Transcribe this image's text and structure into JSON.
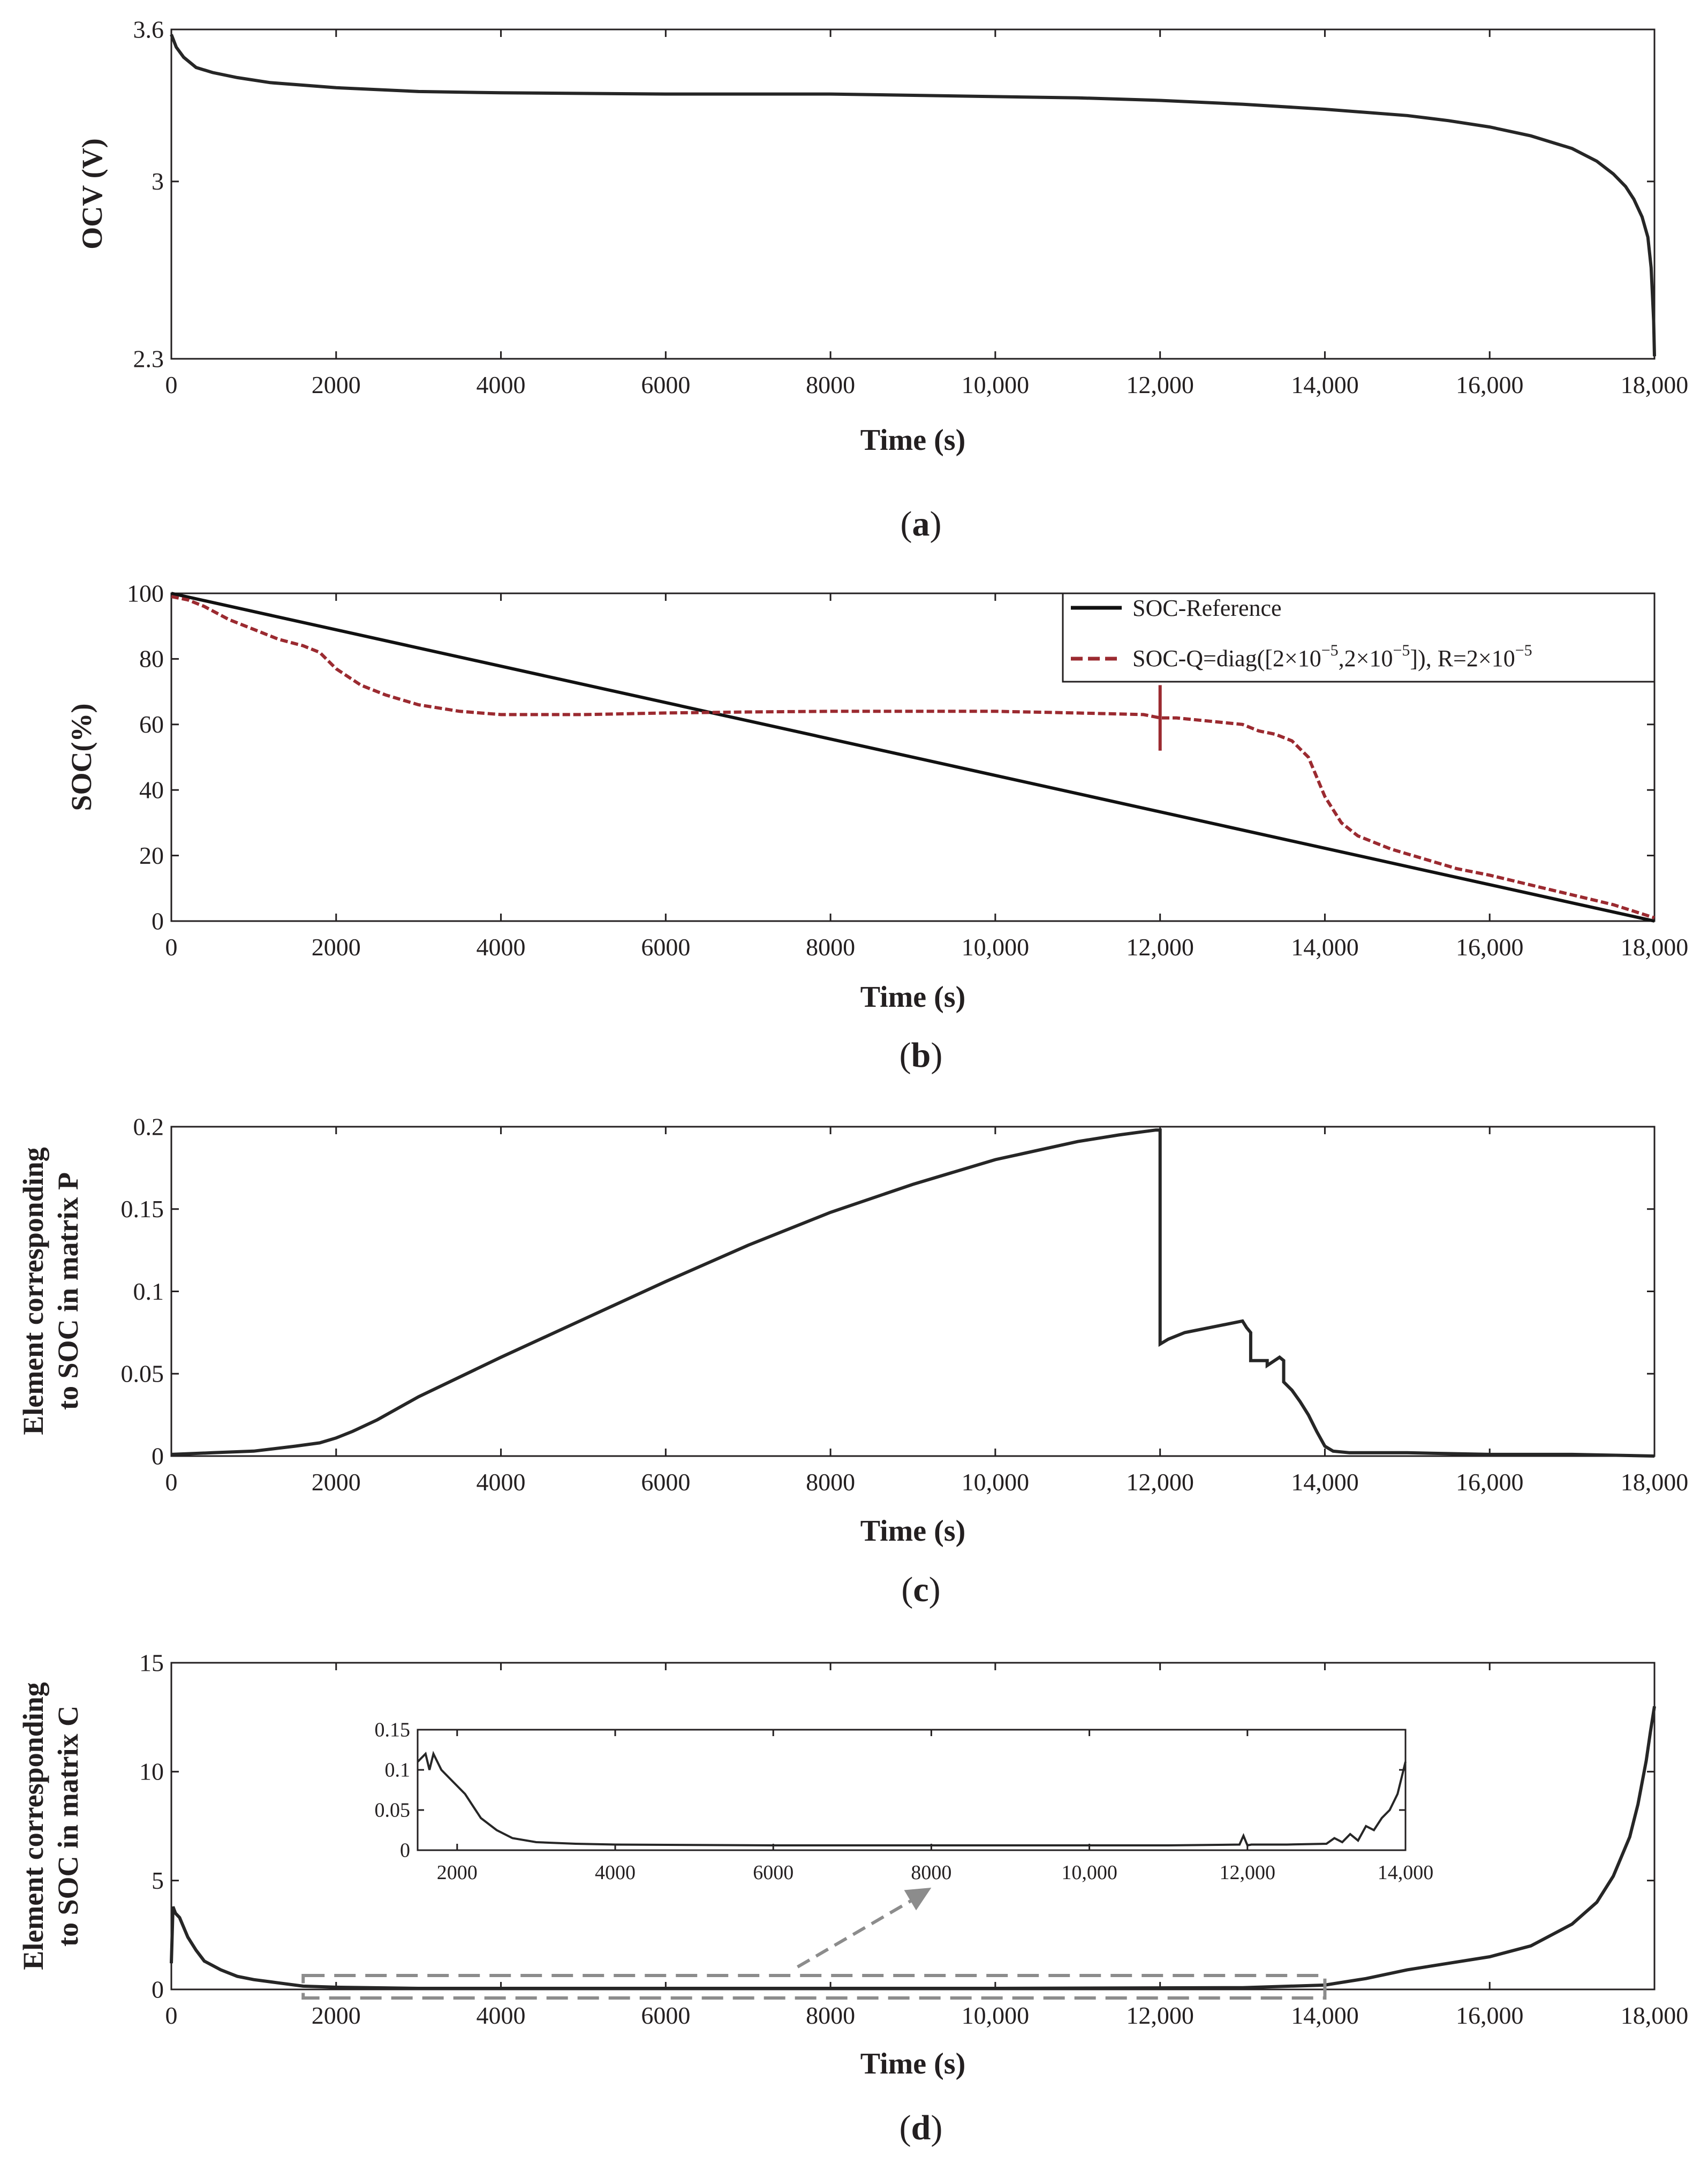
{
  "figure": {
    "panel_labels": [
      "a",
      "b",
      "c",
      "d"
    ]
  },
  "colors": {
    "axis": "#231f20",
    "curve": "#262626",
    "soc_estimate": "#9b2a30",
    "zoom": "#8c8c8c"
  },
  "chart_data": [
    {
      "id": "a",
      "type": "line",
      "title": "",
      "xlabel": "Time  (s)",
      "ylabel": "OCV (V)",
      "xlim": [
        0,
        18000
      ],
      "ylim": [
        2.3,
        3.6
      ],
      "xticks": [
        0,
        2000,
        4000,
        6000,
        8000,
        10000,
        12000,
        14000,
        16000,
        18000
      ],
      "xtick_labels": [
        "0",
        "2000",
        "4000",
        "6000",
        "8000",
        "10,000",
        "12,000",
        "14,000",
        "16,000",
        "18,000"
      ],
      "yticks": [
        2.3,
        3,
        3.6
      ],
      "ytick_labels": [
        "2.3",
        "3",
        "3.6"
      ],
      "series": [
        {
          "name": "OCV",
          "x": [
            0,
            60,
            150,
            300,
            500,
            800,
            1200,
            2000,
            3000,
            4000,
            6000,
            8000,
            10000,
            11000,
            12000,
            13000,
            14000,
            15000,
            15500,
            16000,
            16500,
            17000,
            17300,
            17500,
            17650,
            17750,
            17850,
            17920,
            17960,
            17990,
            18000
          ],
          "y": [
            3.58,
            3.53,
            3.49,
            3.45,
            3.43,
            3.41,
            3.39,
            3.37,
            3.355,
            3.35,
            3.345,
            3.345,
            3.335,
            3.33,
            3.32,
            3.305,
            3.285,
            3.26,
            3.24,
            3.215,
            3.18,
            3.13,
            3.08,
            3.03,
            2.98,
            2.93,
            2.86,
            2.78,
            2.66,
            2.45,
            2.31
          ]
        }
      ]
    },
    {
      "id": "b",
      "type": "line",
      "title": "",
      "xlabel": "Time  (s)",
      "ylabel": "SOC(%)",
      "xlim": [
        0,
        18000
      ],
      "ylim": [
        0,
        100
      ],
      "xticks": [
        0,
        2000,
        4000,
        6000,
        8000,
        10000,
        12000,
        14000,
        16000,
        18000
      ],
      "xtick_labels": [
        "0",
        "2000",
        "4000",
        "6000",
        "8000",
        "10,000",
        "12,000",
        "14,000",
        "16,000",
        "18,000"
      ],
      "yticks": [
        0,
        20,
        40,
        60,
        80,
        100
      ],
      "ytick_labels": [
        "0",
        "20",
        "40",
        "60",
        "80",
        "100"
      ],
      "legend": {
        "position": "top-right",
        "reference_label": "SOC-Reference",
        "estimate_label_prefix": "SOC-Q=diag([2",
        "estimate_label_times": "×",
        "estimate_label_base": "10",
        "estimate_label_exp": "−5",
        "estimate_label_sep": ",2",
        "estimate_label_mid": "]), R=2",
        "estimate_label_end": ""
      },
      "series": [
        {
          "name": "SOC-Reference",
          "style": "solid",
          "x": [
            0,
            18000
          ],
          "y": [
            100,
            0
          ]
        },
        {
          "name": "SOC-Q=diag([2×10−5,2×10−5]), R=2×10−5",
          "style": "dashed",
          "x": [
            0,
            200,
            400,
            700,
            1000,
            1300,
            1600,
            1800,
            2000,
            2300,
            2600,
            3000,
            3500,
            4000,
            4500,
            5000,
            6000,
            7000,
            8000,
            9000,
            10000,
            11000,
            11800,
            12000,
            12200,
            12600,
            13000,
            13200,
            13400,
            13600,
            13800,
            14000,
            14200,
            14400,
            14800,
            15200,
            15600,
            16000,
            16500,
            17000,
            17500,
            18000
          ],
          "y": [
            99,
            98,
            96,
            92,
            89,
            86,
            84,
            82,
            77,
            72,
            69,
            66,
            64,
            63,
            63,
            63,
            63.5,
            63.8,
            64,
            64,
            64,
            63.5,
            63,
            62,
            62,
            61,
            60,
            58,
            57,
            55,
            50,
            38,
            30,
            26,
            22,
            19,
            16,
            14,
            11,
            8,
            5,
            1
          ]
        },
        {
          "name": "spike",
          "style": "dashed",
          "x": [
            12000,
            12000
          ],
          "y": [
            72,
            52
          ]
        }
      ]
    },
    {
      "id": "c",
      "type": "line",
      "title": "",
      "xlabel": "Time (s)",
      "ylabel_line1": "Element corresponding",
      "ylabel_line2": "to SOC in matrix P",
      "xlim": [
        0,
        18000
      ],
      "ylim": [
        0,
        0.2
      ],
      "xticks": [
        0,
        2000,
        4000,
        6000,
        8000,
        10000,
        12000,
        14000,
        16000,
        18000
      ],
      "xtick_labels": [
        "0",
        "2000",
        "4000",
        "6000",
        "8000",
        "10,000",
        "12,000",
        "14,000",
        "16,000",
        "18,000"
      ],
      "yticks": [
        0,
        0.05,
        0.1,
        0.15,
        0.2
      ],
      "ytick_labels": [
        "0",
        "0.05",
        "0.1",
        "0.15",
        "0.2"
      ],
      "series": [
        {
          "name": "P",
          "x": [
            0,
            500,
            1000,
            1500,
            1800,
            2000,
            2200,
            2500,
            3000,
            4000,
            5000,
            6000,
            7000,
            8000,
            9000,
            10000,
            11000,
            11500,
            11800,
            11950,
            12000,
            12000,
            12100,
            12300,
            12600,
            12900,
            13000,
            13050,
            13100,
            13100,
            13300,
            13300,
            13450,
            13500,
            13500,
            13600,
            13700,
            13800,
            13900,
            14000,
            14100,
            14300,
            15000,
            16000,
            17000,
            18000
          ],
          "y": [
            0.001,
            0.002,
            0.003,
            0.006,
            0.008,
            0.011,
            0.015,
            0.022,
            0.036,
            0.06,
            0.083,
            0.106,
            0.128,
            0.148,
            0.165,
            0.18,
            0.191,
            0.195,
            0.197,
            0.198,
            0.198,
            0.068,
            0.071,
            0.075,
            0.078,
            0.081,
            0.082,
            0.078,
            0.075,
            0.058,
            0.058,
            0.055,
            0.06,
            0.058,
            0.045,
            0.04,
            0.033,
            0.025,
            0.015,
            0.006,
            0.003,
            0.002,
            0.002,
            0.001,
            0.001,
            0.0
          ]
        }
      ]
    },
    {
      "id": "d",
      "type": "line",
      "title": "",
      "xlabel": "Time (s)",
      "ylabel_line1": "Element corresponding",
      "ylabel_line2": "to SOC in matrix C",
      "xlim": [
        0,
        18000
      ],
      "ylim": [
        0,
        15
      ],
      "xticks": [
        0,
        2000,
        4000,
        6000,
        8000,
        10000,
        12000,
        14000,
        16000,
        18000
      ],
      "xtick_labels": [
        "0",
        "2000",
        "4000",
        "6000",
        "8000",
        "10,000",
        "12,000",
        "14,000",
        "16,000",
        "18,000"
      ],
      "yticks": [
        0,
        5,
        10,
        15
      ],
      "ytick_labels": [
        "0",
        "5",
        "10",
        "15"
      ],
      "series": [
        {
          "name": "C",
          "x": [
            0,
            20,
            50,
            100,
            200,
            300,
            400,
            600,
            800,
            1000,
            1300,
            1600,
            2000,
            3000,
            6000,
            10000,
            13000,
            14000,
            14500,
            15000,
            15500,
            16000,
            16500,
            17000,
            17300,
            17500,
            17700,
            17800,
            17900,
            17950,
            18000
          ],
          "y": [
            1.2,
            3.8,
            3.5,
            3.3,
            2.4,
            1.8,
            1.3,
            0.9,
            0.6,
            0.45,
            0.3,
            0.15,
            0.1,
            0.05,
            0.05,
            0.05,
            0.08,
            0.2,
            0.5,
            0.9,
            1.2,
            1.5,
            2.0,
            3.0,
            4.0,
            5.2,
            7.0,
            8.5,
            10.5,
            11.8,
            13.0
          ]
        }
      ],
      "inset": {
        "xlim": [
          1500,
          14000
        ],
        "ylim": [
          0,
          0.15
        ],
        "xticks": [
          2000,
          4000,
          6000,
          8000,
          10000,
          12000,
          14000
        ],
        "xtick_labels": [
          "2000",
          "4000",
          "6000",
          "8000",
          "10,000",
          "12,000",
          "14,000"
        ],
        "yticks": [
          0,
          0.05,
          0.1,
          0.15
        ],
        "ytick_labels": [
          "0",
          "0.05",
          "0.1",
          "0.15"
        ],
        "zoom_x": [
          1600,
          14000
        ],
        "series": {
          "x": [
            1500,
            1600,
            1650,
            1700,
            1800,
            1900,
            2000,
            2100,
            2200,
            2300,
            2500,
            2700,
            3000,
            3500,
            4000,
            6000,
            8000,
            10000,
            11000,
            11900,
            11950,
            12000,
            12050,
            12500,
            13000,
            13100,
            13200,
            13300,
            13400,
            13500,
            13600,
            13700,
            13800,
            13900,
            14000
          ],
          "y": [
            0.11,
            0.12,
            0.1,
            0.12,
            0.1,
            0.09,
            0.08,
            0.07,
            0.055,
            0.04,
            0.025,
            0.015,
            0.01,
            0.008,
            0.007,
            0.006,
            0.006,
            0.006,
            0.006,
            0.007,
            0.018,
            0.006,
            0.007,
            0.007,
            0.008,
            0.015,
            0.01,
            0.02,
            0.012,
            0.03,
            0.025,
            0.04,
            0.05,
            0.07,
            0.11
          ]
        }
      }
    }
  ]
}
